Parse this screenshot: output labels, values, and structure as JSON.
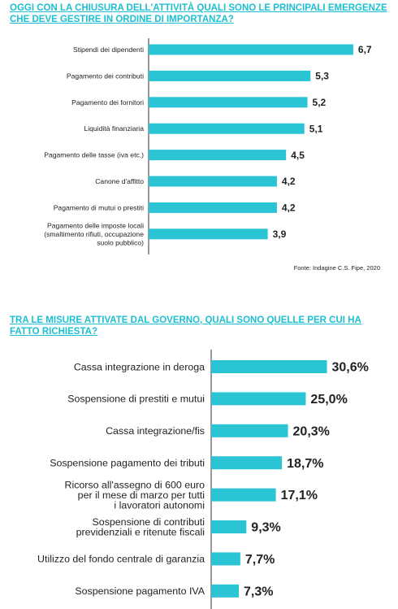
{
  "chart_data": [
    {
      "type": "bar",
      "orientation": "horizontal",
      "title": "OGGI CON LA CHIUSURA DELL'ATTIVITÀ QUALI SONO LE PRINCIPALI EMERGENZE CHE DEVE GESTIRE IN ORDINE DI IMPORTANZA?",
      "categories": [
        [
          "Stipendi dei dipendenti"
        ],
        [
          "Pagamento dei contributi"
        ],
        [
          "Pagamento dei fornitori"
        ],
        [
          "Liquidità finanziaria"
        ],
        [
          "Pagamento delle tasse (iva etc.)"
        ],
        [
          "Canone d'affitto"
        ],
        [
          "Pagamento di mutui o prestiti"
        ],
        [
          "Pagamento delle imposte locali",
          "(smaltimento rifiuti, occupazione",
          "suolo pubblico)"
        ]
      ],
      "values": [
        6.7,
        5.3,
        5.2,
        5.1,
        4.5,
        4.2,
        4.2,
        3.9
      ],
      "value_labels": [
        "6,7",
        "5,3",
        "5,2",
        "5,1",
        "4,5",
        "4,2",
        "4,2",
        "3,9"
      ],
      "xlim": [
        0,
        7.5
      ],
      "grid": false,
      "bar_color": "#2bc4d4",
      "source": "Fonte: Indagine C.S. Fipe, 2020"
    },
    {
      "type": "bar",
      "orientation": "horizontal",
      "title": "TRA LE MISURE ATTIVATE DAL GOVERNO, QUALI SONO QUELLE PER CUI HA FATTO RICHIESTA?",
      "categories": [
        [
          "Cassa integrazione in deroga"
        ],
        [
          "Sospensione di prestiti e mutui"
        ],
        [
          "Cassa integrazione/fis"
        ],
        [
          "Sospensione pagamento dei tributi"
        ],
        [
          "Ricorso all'assegno di 600 euro",
          "per il mese di marzo per tutti",
          "i lavoratori autonomi"
        ],
        [
          "Sospensione di contributi",
          "previdenziali e ritenute fiscali"
        ],
        [
          "Utilizzo del fondo centrale di garanzia"
        ],
        [
          "Sospensione pagamento IVA"
        ]
      ],
      "values": [
        30.6,
        25.0,
        20.3,
        18.7,
        17.1,
        9.3,
        7.7,
        7.3
      ],
      "value_labels": [
        "30,6%",
        "25,0%",
        "20,3%",
        "18,7%",
        "17,1%",
        "9,3%",
        "7,7%",
        "7,3%"
      ],
      "xlim": [
        0,
        35
      ],
      "grid": false,
      "bar_color": "#2bc4d4"
    }
  ]
}
